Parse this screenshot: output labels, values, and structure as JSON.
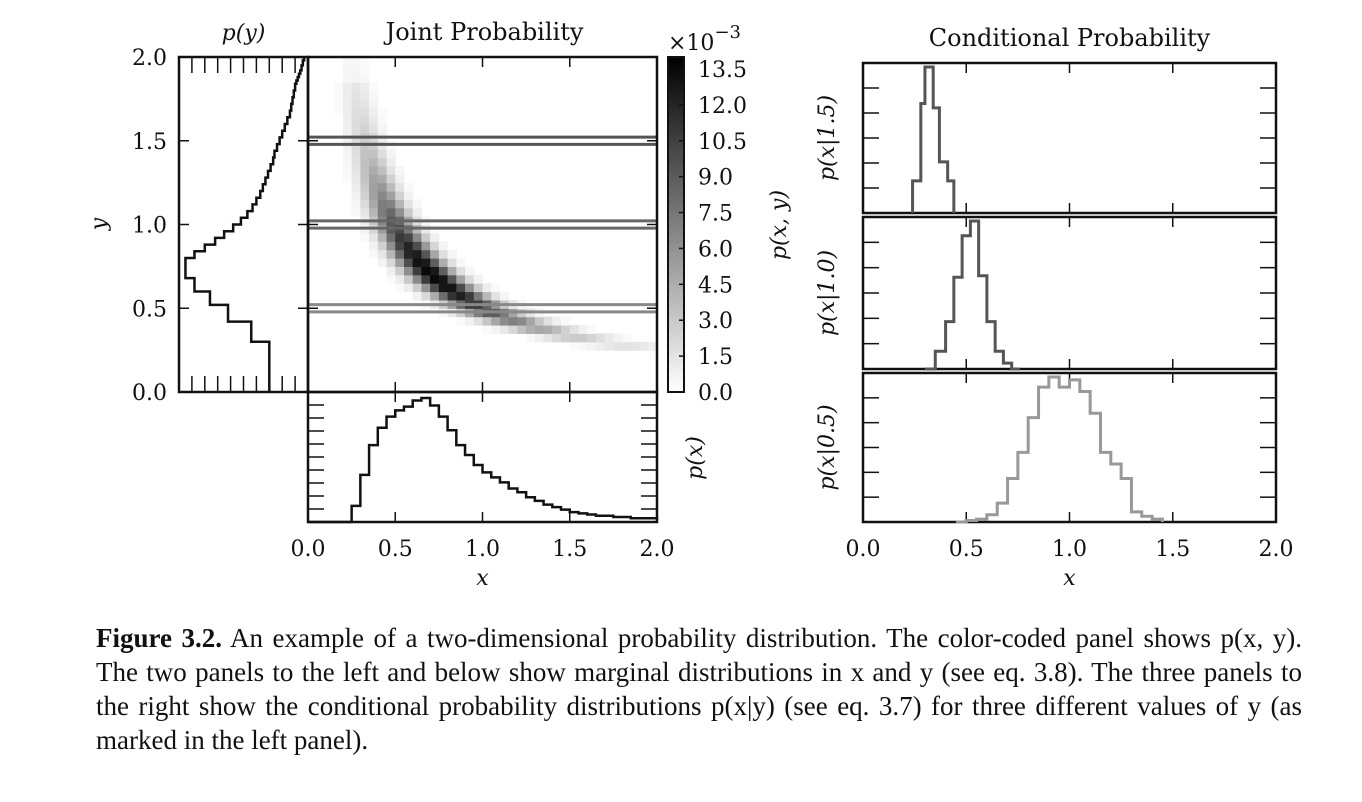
{
  "chart_data": [
    {
      "type": "line",
      "panel": "marginal-y",
      "title": "p(y)",
      "ylabel": "y",
      "ylim": [
        0.0,
        2.0
      ],
      "yticks": [
        "0.0",
        "0.5",
        "1.0",
        "1.5",
        "2.0"
      ],
      "series": [
        {
          "name": "p(y)",
          "color": "#111111",
          "x": [
            0.3,
            0.3,
            0.44,
            0.44,
            0.62,
            0.62,
            0.76,
            0.76,
            0.88,
            0.88,
            0.95,
            0.95,
            0.95,
            0.88,
            0.8,
            0.72,
            0.65,
            0.58,
            0.52,
            0.47,
            0.43,
            0.4,
            0.37,
            0.35,
            0.33,
            0.31,
            0.29,
            0.27,
            0.26,
            0.24,
            0.22,
            0.2,
            0.18,
            0.16,
            0.14,
            0.13,
            0.12,
            0.11,
            0.1,
            0.09,
            0.08,
            0.07,
            0.06,
            0.05,
            0.04,
            0.03,
            0.03
          ],
          "y": [
            0.0,
            0.3,
            0.3,
            0.42,
            0.42,
            0.52,
            0.52,
            0.6,
            0.6,
            0.68,
            0.68,
            0.72,
            0.76,
            0.8,
            0.84,
            0.88,
            0.92,
            0.96,
            1.0,
            1.04,
            1.08,
            1.12,
            1.16,
            1.2,
            1.24,
            1.28,
            1.32,
            1.36,
            1.4,
            1.44,
            1.48,
            1.52,
            1.56,
            1.6,
            1.64,
            1.68,
            1.72,
            1.76,
            1.8,
            1.84,
            1.86,
            1.88,
            1.9,
            1.92,
            1.95,
            1.98,
            2.0
          ]
        }
      ]
    },
    {
      "type": "heatmap",
      "panel": "joint",
      "title": "Joint Probability",
      "xlim": [
        0.0,
        2.0
      ],
      "ylim": [
        0.0,
        2.0
      ],
      "colorbar": {
        "label": "p(x, y)",
        "scale_label": "×10",
        "scale_exponent": "−3",
        "ticks": [
          "0.0",
          "1.5",
          "3.0",
          "4.5",
          "6.0",
          "7.5",
          "9.0",
          "10.5",
          "12.0",
          "13.5"
        ],
        "range": [
          0.0,
          14.0
        ]
      },
      "density_curve": "x*y ≈ 0.5",
      "slice_lines_y": [
        1.5,
        1.0,
        0.5
      ],
      "slice_colors": [
        "#555555",
        "#666666",
        "#888888"
      ]
    },
    {
      "type": "line",
      "panel": "marginal-x",
      "ylabel": "p(x)",
      "xlabel": "x",
      "xlim": [
        0.0,
        2.0
      ],
      "xticks": [
        "0.0",
        "0.5",
        "1.0",
        "1.5",
        "2.0"
      ],
      "series": [
        {
          "name": "p(x)",
          "color": "#111111",
          "x": [
            0.0,
            0.25,
            0.25,
            0.3,
            0.35,
            0.4,
            0.45,
            0.5,
            0.55,
            0.6,
            0.65,
            0.7,
            0.75,
            0.8,
            0.85,
            0.9,
            0.95,
            1.0,
            1.05,
            1.1,
            1.15,
            1.2,
            1.25,
            1.3,
            1.35,
            1.4,
            1.45,
            1.5,
            1.55,
            1.6,
            1.65,
            1.7,
            1.75,
            1.8,
            1.85,
            1.9,
            1.95,
            2.0
          ],
          "y": [
            0.0,
            0.0,
            0.13,
            0.38,
            0.62,
            0.76,
            0.85,
            0.9,
            0.93,
            0.98,
            1.0,
            0.94,
            0.85,
            0.74,
            0.62,
            0.54,
            0.46,
            0.4,
            0.36,
            0.32,
            0.27,
            0.24,
            0.2,
            0.17,
            0.14,
            0.12,
            0.1,
            0.08,
            0.07,
            0.06,
            0.05,
            0.05,
            0.04,
            0.04,
            0.03,
            0.03,
            0.03,
            0.02
          ]
        }
      ]
    },
    {
      "type": "line",
      "panel": "conditional",
      "title": "Conditional Probability",
      "xlabel": "x",
      "xlim": [
        0.0,
        2.0
      ],
      "xticks": [
        "0.0",
        "0.5",
        "1.0",
        "1.5",
        "2.0"
      ],
      "subplots": [
        {
          "ylabel": "p(x|1.5)",
          "color": "#555555",
          "x": [
            0.24,
            0.24,
            0.28,
            0.3,
            0.34,
            0.37,
            0.41,
            0.44,
            0.44
          ],
          "y": [
            0.0,
            0.22,
            0.75,
            1.0,
            0.72,
            0.35,
            0.22,
            0.0,
            0.0
          ]
        },
        {
          "ylabel": "p(x|1.0)",
          "color": "#555555",
          "x": [
            0.3,
            0.35,
            0.4,
            0.44,
            0.48,
            0.52,
            0.56,
            0.6,
            0.64,
            0.68,
            0.72,
            0.76
          ],
          "y": [
            0.0,
            0.12,
            0.32,
            0.62,
            0.9,
            1.0,
            0.63,
            0.32,
            0.12,
            0.04,
            0.0,
            0.0
          ]
        },
        {
          "ylabel": "p(x|0.5)",
          "color": "#999999",
          "x": [
            0.45,
            0.5,
            0.55,
            0.6,
            0.65,
            0.7,
            0.75,
            0.8,
            0.85,
            0.9,
            0.95,
            1.0,
            1.05,
            1.1,
            1.15,
            1.2,
            1.25,
            1.3,
            1.35,
            1.4,
            1.45
          ],
          "y": [
            0.0,
            0.01,
            0.02,
            0.05,
            0.13,
            0.3,
            0.48,
            0.72,
            0.93,
            1.0,
            0.93,
            0.98,
            0.9,
            0.75,
            0.48,
            0.4,
            0.3,
            0.07,
            0.04,
            0.02,
            0.0
          ]
        }
      ]
    }
  ],
  "caption": {
    "label": "Figure 3.2.",
    "text": " An example of a two-dimensional probability distribution. The color-coded panel shows p(x, y). The two panels to the left and below show marginal distributions in x and y (see eq. 3.8). The three panels to the right show the conditional probability distributions p(x|y) (see eq. 3.7) for three different values of y (as marked in the left panel)."
  }
}
